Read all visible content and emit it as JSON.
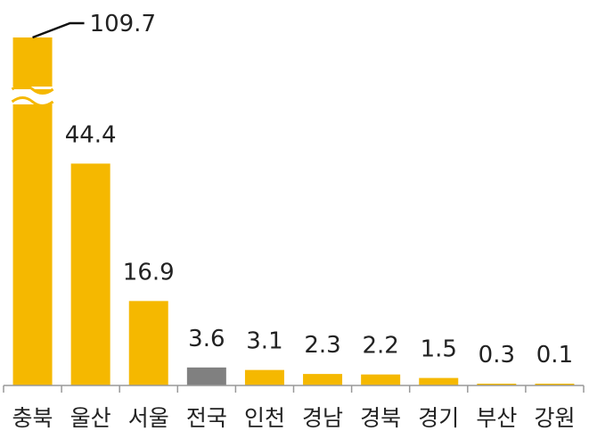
{
  "chart_data": {
    "type": "bar",
    "categories": [
      "충북",
      "울산",
      "서울",
      "전국",
      "인천",
      "경남",
      "경북",
      "경기",
      "부산",
      "강원"
    ],
    "values": [
      109.7,
      44.4,
      16.9,
      3.6,
      3.1,
      2.3,
      2.2,
      1.5,
      0.3,
      0.1
    ],
    "value_labels": [
      "109.7",
      "44.4",
      "16.9",
      "3.6",
      "3.1",
      "2.3",
      "2.2",
      "1.5",
      "0.3",
      "0.1"
    ],
    "axis_break": true,
    "grid": false,
    "legend": "none",
    "colors": {
      "bar": "#F5B800",
      "highlight": "#808080",
      "axis": "#999999",
      "text": "#222222"
    },
    "highlight_category": "전국"
  }
}
